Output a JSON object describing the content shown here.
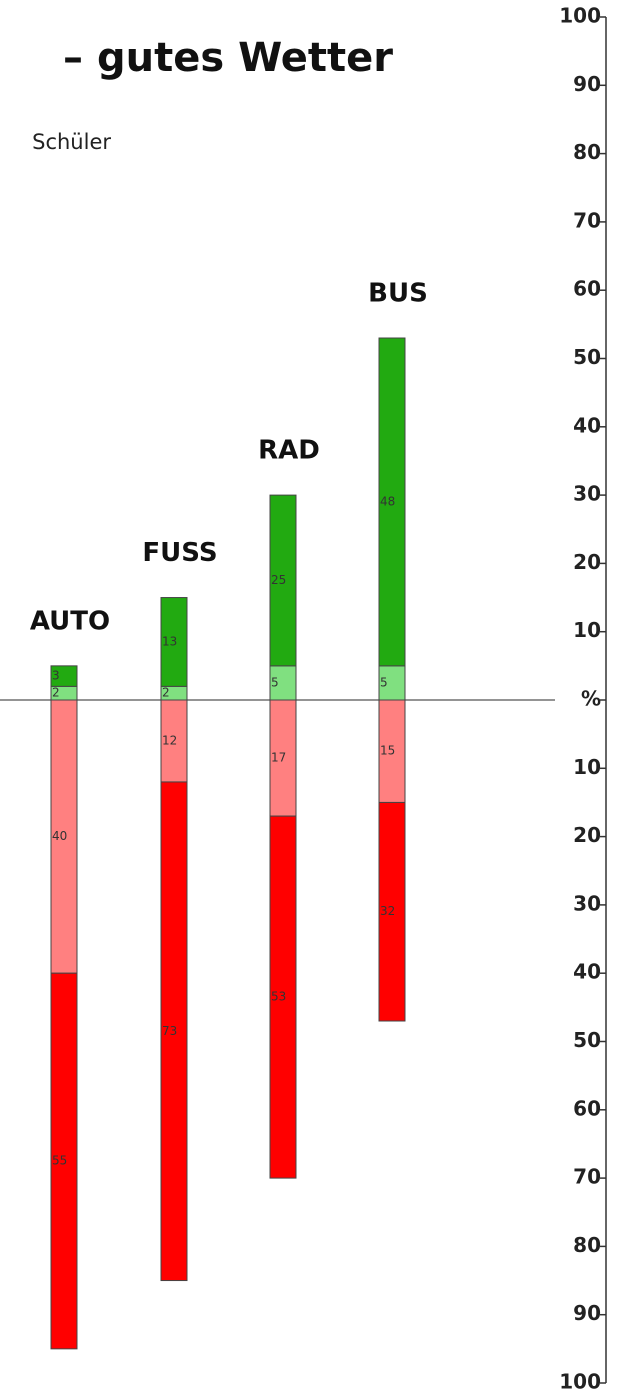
{
  "chart_data": {
    "type": "diverging-stacked-bar",
    "title": "– gutes Wetter",
    "subtitle": "Schüler",
    "categories": [
      "AUTO",
      "FUSS",
      "RAD",
      "BUS"
    ],
    "series": [
      {
        "color": "#80e080",
        "values": [
          2,
          2,
          5,
          5
        ]
      },
      {
        "color": "#22aa11",
        "values": [
          3,
          13,
          25,
          48
        ]
      },
      {
        "color": "#ff8080",
        "values": [
          -40,
          -12,
          -17,
          -15
        ],
        "value_labels": [
          "40",
          "12",
          "17",
          "15"
        ]
      },
      {
        "color": "#ff0000",
        "values": [
          -55,
          -73,
          -53,
          -32
        ],
        "value_labels": [
          "55",
          "73",
          "53",
          "32"
        ]
      }
    ],
    "ylim": [
      -100,
      100
    ],
    "yticks": [
      100,
      90,
      80,
      70,
      60,
      50,
      40,
      30,
      20,
      10,
      {
        "value": 0,
        "label": "%"
      },
      {
        "value": -10,
        "label": "10"
      },
      {
        "value": -20,
        "label": "20"
      },
      {
        "value": -30,
        "label": "30"
      },
      {
        "value": -40,
        "label": "40"
      },
      {
        "value": -50,
        "label": "50"
      },
      {
        "value": -60,
        "label": "60"
      },
      {
        "value": -70,
        "label": "70"
      },
      {
        "value": -80,
        "label": "80"
      },
      {
        "value": -90,
        "label": "90"
      },
      {
        "value": -100,
        "label": "100"
      }
    ]
  }
}
